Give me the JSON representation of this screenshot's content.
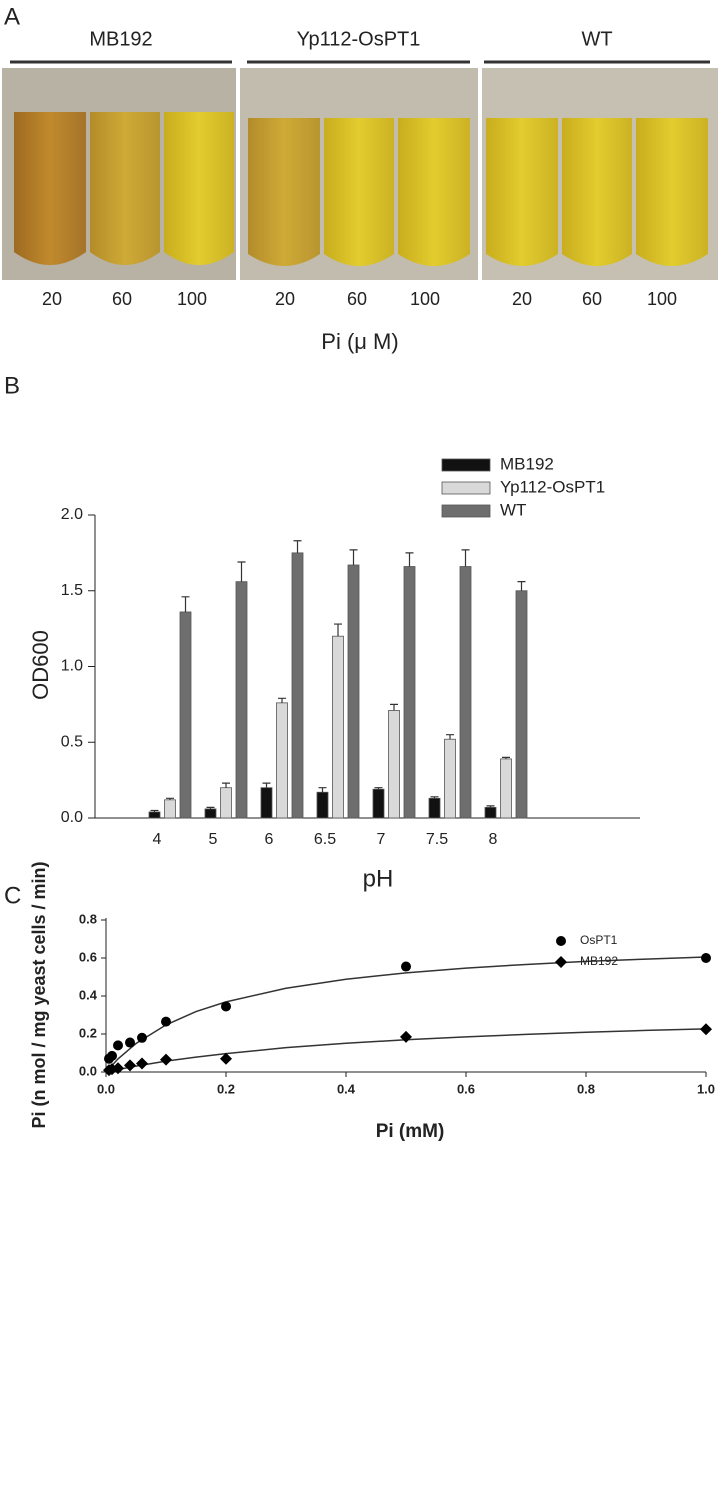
{
  "photo_panel": {
    "label": "A",
    "groups": [
      {
        "name": "MB192",
        "concentrations": [
          20,
          60,
          100
        ]
      },
      {
        "name": "Yp112-OsPT1",
        "concentrations": [
          20,
          60,
          100
        ]
      },
      {
        "name": "WT",
        "concentrations": [
          20,
          60,
          100
        ]
      }
    ],
    "xlabel": "Pi (μ M)"
  },
  "chart_data": [
    {
      "type": "bar",
      "label": "B",
      "xlabel": "pH",
      "ylabel": "OD600",
      "categories": [
        "4",
        "5",
        "6",
        "6.5",
        "7",
        "7.5",
        "8"
      ],
      "series": [
        {
          "name": "MB192",
          "color": "#111111",
          "values": [
            0.04,
            0.06,
            0.2,
            0.17,
            0.19,
            0.13,
            0.07
          ],
          "errors": [
            0.01,
            0.01,
            0.03,
            0.03,
            0.01,
            0.01,
            0.01
          ]
        },
        {
          "name": "Yp112-OsPT1",
          "color": "#d9d9d9",
          "values": [
            0.12,
            0.2,
            0.76,
            1.2,
            0.71,
            0.52,
            0.39
          ],
          "errors": [
            0.01,
            0.03,
            0.03,
            0.08,
            0.04,
            0.03,
            0.01
          ]
        },
        {
          "name": "WT",
          "color": "#6e6e6e",
          "values": [
            1.36,
            1.56,
            1.75,
            1.67,
            1.66,
            1.66,
            1.5
          ],
          "errors": [
            0.1,
            0.13,
            0.08,
            0.1,
            0.09,
            0.11,
            0.06
          ]
        }
      ],
      "ylim": [
        0,
        2
      ],
      "yticks": [
        {
          "value": 0,
          "label": "0.0"
        },
        0.5,
        {
          "value": 1,
          "label": "1.0"
        },
        1.5,
        {
          "value": 2,
          "label": "2.0"
        }
      ],
      "legend": "upper right",
      "grid": false
    },
    {
      "type": "scatter",
      "label": "C",
      "xlabel": "Pi (mM)",
      "ylabel": "Pi (n mol / mg yeast cells / min)",
      "series": [
        {
          "name": "OsPT1",
          "color": "#000000",
          "marker": "circle",
          "x": [
            0.005,
            0.01,
            0.02,
            0.04,
            0.06,
            0.1,
            0.2,
            0.5,
            1.0
          ],
          "values": [
            0.07,
            0.085,
            0.14,
            0.155,
            0.18,
            0.265,
            0.345,
            0.555,
            0.6
          ],
          "fit_x": [
            0,
            0.02,
            0.05,
            0.1,
            0.15,
            0.2,
            0.3,
            0.4,
            0.5,
            0.6,
            0.7,
            0.8,
            0.9,
            1.0
          ],
          "fit_values": [
            0,
            0.069,
            0.15,
            0.248,
            0.318,
            0.369,
            0.441,
            0.488,
            0.522,
            0.547,
            0.566,
            0.582,
            0.594,
            0.605
          ]
        },
        {
          "name": "MB192",
          "color": "#000000",
          "marker": "diamond",
          "x": [
            0.005,
            0.01,
            0.02,
            0.04,
            0.06,
            0.1,
            0.2,
            0.5,
            1.0
          ],
          "values": [
            0.01,
            0.015,
            0.02,
            0.035,
            0.045,
            0.065,
            0.07,
            0.185,
            0.225
          ],
          "fit_x": [
            0,
            0.02,
            0.05,
            0.1,
            0.15,
            0.2,
            0.3,
            0.4,
            0.5,
            0.6,
            0.7,
            0.8,
            0.9,
            1.0
          ],
          "fit_values": [
            0,
            0.013,
            0.031,
            0.057,
            0.078,
            0.097,
            0.128,
            0.151,
            0.17,
            0.185,
            0.198,
            0.209,
            0.219,
            0.227
          ]
        }
      ],
      "xlim": [
        0,
        1
      ],
      "xticks": [
        {
          "value": 0,
          "label": "0.0"
        },
        0.2,
        0.4,
        0.6,
        0.8,
        {
          "value": 1,
          "label": "1.0"
        }
      ],
      "ylim": [
        0,
        0.8
      ],
      "yticks": [
        {
          "value": 0,
          "label": "0.0"
        },
        0.2,
        0.4,
        0.6,
        0.8
      ],
      "legend": "upper right",
      "grid": false
    }
  ]
}
